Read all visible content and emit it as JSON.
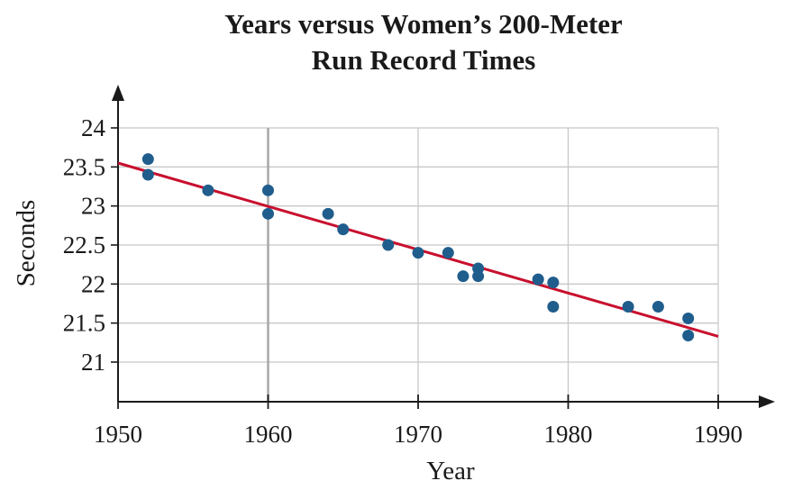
{
  "chart_data": {
    "type": "scatter",
    "title_lines": [
      "Years versus Women’s 200-Meter",
      "Run Record Times"
    ],
    "xlabel": "Year",
    "ylabel": "Seconds",
    "xlim": [
      1950,
      1990
    ],
    "ylim": [
      20.5,
      24.2
    ],
    "xticks": [
      1950,
      1960,
      1970,
      1980,
      1990
    ],
    "yticks": [
      21,
      21.5,
      22,
      22.5,
      23,
      23.5,
      24
    ],
    "ytick_labels": [
      "21",
      "21.5",
      "22",
      "22.5",
      "23",
      "23.5",
      "24"
    ],
    "grid": true,
    "points": [
      {
        "x": 1952,
        "y": 23.6
      },
      {
        "x": 1952,
        "y": 23.4
      },
      {
        "x": 1956,
        "y": 23.2
      },
      {
        "x": 1960,
        "y": 23.2
      },
      {
        "x": 1960,
        "y": 22.9
      },
      {
        "x": 1964,
        "y": 22.9
      },
      {
        "x": 1965,
        "y": 22.7
      },
      {
        "x": 1968,
        "y": 22.5
      },
      {
        "x": 1970,
        "y": 22.4
      },
      {
        "x": 1972,
        "y": 22.4
      },
      {
        "x": 1973,
        "y": 22.1
      },
      {
        "x": 1974,
        "y": 22.2
      },
      {
        "x": 1974,
        "y": 22.1
      },
      {
        "x": 1978,
        "y": 22.06
      },
      {
        "x": 1979,
        "y": 22.02
      },
      {
        "x": 1979,
        "y": 21.71
      },
      {
        "x": 1984,
        "y": 21.71
      },
      {
        "x": 1986,
        "y": 21.71
      },
      {
        "x": 1988,
        "y": 21.56
      },
      {
        "x": 1988,
        "y": 21.34
      }
    ],
    "trendline": {
      "x": [
        1950,
        1990
      ],
      "y": [
        23.55,
        21.33
      ]
    },
    "colors": {
      "points": "#1f5d8c",
      "trendline": "#c8102e",
      "grid": "#c8c8c8",
      "axis": "#1a1a1a"
    }
  }
}
